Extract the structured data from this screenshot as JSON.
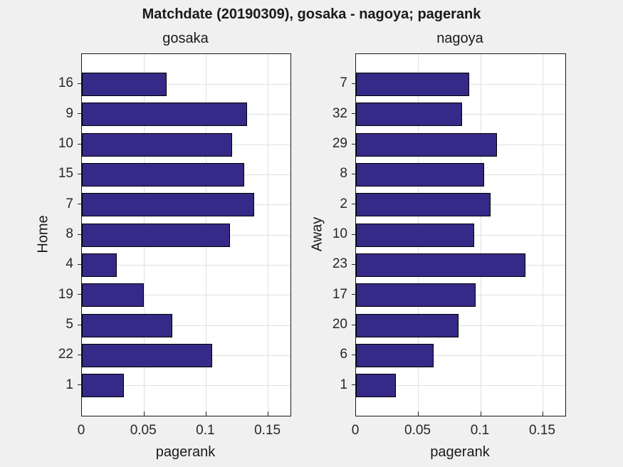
{
  "figure": {
    "title": "Matchdate (20190309), gosaka - nagoya; pagerank",
    "background_color": "#f0f0f0",
    "plot_background_color": "#ffffff",
    "text_color": "#1a1a1a",
    "tick_color": "#262626"
  },
  "chart_data": [
    {
      "type": "barh",
      "title": "gosaka",
      "ylabel": "Home",
      "xlabel": "pagerank",
      "categories": [
        "16",
        "9",
        "10",
        "15",
        "7",
        "8",
        "4",
        "19",
        "5",
        "22",
        "1"
      ],
      "values": [
        0.068,
        0.133,
        0.121,
        0.131,
        0.139,
        0.119,
        0.028,
        0.05,
        0.073,
        0.105,
        0.034
      ],
      "xlim": [
        0,
        0.168
      ],
      "xticks": [
        {
          "v": 0,
          "label": "0"
        },
        {
          "v": 0.05,
          "label": "0.05"
        },
        {
          "v": 0.1,
          "label": "0.1"
        },
        {
          "v": 0.15,
          "label": "0.15"
        }
      ],
      "grid": true,
      "legend": null,
      "bar_color": "#352A87",
      "bar_edge_color": "#000000",
      "grid_color": "#e0e0e0"
    },
    {
      "type": "barh",
      "title": "nagoya",
      "ylabel": "Away",
      "xlabel": "pagerank",
      "categories": [
        "7",
        "32",
        "29",
        "8",
        "2",
        "10",
        "23",
        "17",
        "20",
        "6",
        "1"
      ],
      "values": [
        0.091,
        0.085,
        0.113,
        0.103,
        0.108,
        0.095,
        0.136,
        0.096,
        0.082,
        0.062,
        0.032
      ],
      "xlim": [
        0,
        0.168
      ],
      "xticks": [
        {
          "v": 0,
          "label": "0"
        },
        {
          "v": 0.05,
          "label": "0.05"
        },
        {
          "v": 0.1,
          "label": "0.1"
        },
        {
          "v": 0.15,
          "label": "0.15"
        }
      ],
      "grid": true,
      "legend": null,
      "bar_color": "#352A87",
      "bar_edge_color": "#000000",
      "grid_color": "#e0e0e0"
    }
  ]
}
